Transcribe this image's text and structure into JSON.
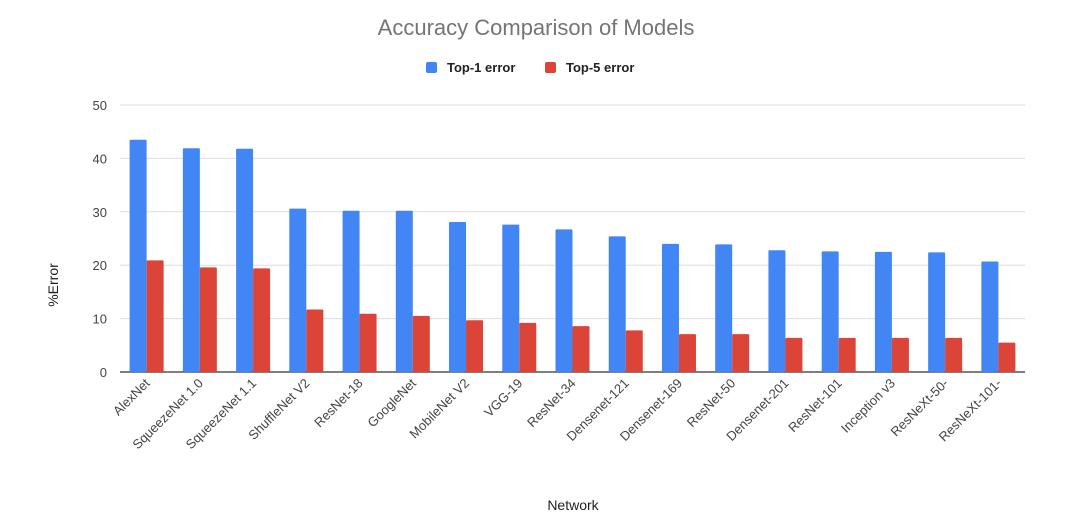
{
  "chart_data": {
    "type": "bar",
    "title": "Accuracy Comparison of Models",
    "xlabel": "Network",
    "ylabel": "%Error",
    "ylim": [
      0,
      50
    ],
    "yticks": [
      0,
      10,
      20,
      30,
      40,
      50
    ],
    "grid": true,
    "legend_position": "top",
    "categories": [
      "AlexNet",
      "SqueezeNet 1.0",
      "SqueezeNet 1.1",
      "ShuffleNet V2",
      "ResNet-18",
      "GoogleNet",
      "MobileNet V2",
      "VGG-19",
      "ResNet-34",
      "Densenet-121",
      "Densenet-169",
      "ResNet-50",
      "Densenet-201",
      "ResNet-101",
      "Inception v3",
      "ResNeXt-50-",
      "ResNeXt-101-"
    ],
    "series": [
      {
        "name": "Top-1 error",
        "color": "#4285f4",
        "values": [
          43.5,
          41.9,
          41.8,
          30.6,
          30.2,
          30.2,
          28.1,
          27.6,
          26.7,
          25.4,
          24.0,
          23.9,
          22.8,
          22.6,
          22.5,
          22.4,
          20.7
        ]
      },
      {
        "name": "Top-5 error",
        "color": "#db4437",
        "values": [
          20.9,
          19.6,
          19.4,
          11.7,
          10.9,
          10.5,
          9.7,
          9.2,
          8.6,
          7.8,
          7.1,
          7.1,
          6.4,
          6.4,
          6.4,
          6.4,
          5.5
        ]
      }
    ]
  }
}
